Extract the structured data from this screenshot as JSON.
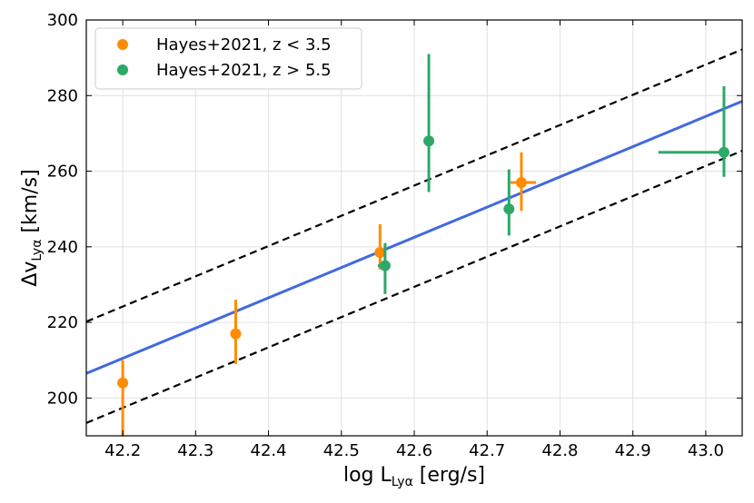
{
  "chart_data": {
    "type": "scatter",
    "title": "",
    "xlabel": {
      "main": "log L",
      "sub": "Lyα",
      "unit": " [erg/s]"
    },
    "ylabel": {
      "main": "Δv",
      "sub": "Lyα",
      "unit": " [km/s]"
    },
    "xlim": [
      42.15,
      43.05
    ],
    "ylim": [
      190,
      300
    ],
    "xticks": [
      "42.2",
      "42.3",
      "42.4",
      "42.5",
      "42.6",
      "42.7",
      "42.8",
      "42.9",
      "43.0"
    ],
    "yticks": [
      "200",
      "220",
      "240",
      "260",
      "280",
      "300"
    ],
    "grid": true,
    "legend_position": "top-left",
    "series": [
      {
        "name": "Hayes+2021, z < 3.5",
        "color": "#ff8c00",
        "points": [
          {
            "x": 42.2,
            "y": 204,
            "yerr": [
              14,
              6
            ],
            "xerr": [
              0,
              0
            ]
          },
          {
            "x": 42.355,
            "y": 217,
            "yerr": [
              8,
              9
            ],
            "xerr": [
              0,
              0
            ]
          },
          {
            "x": 42.553,
            "y": 238.5,
            "yerr": [
              4.5,
              7.5
            ],
            "xerr": [
              0,
              0
            ]
          },
          {
            "x": 42.747,
            "y": 257,
            "yerr": [
              7.5,
              8
            ],
            "xerr": [
              0.015,
              0.02
            ]
          }
        ]
      },
      {
        "name": "Hayes+2021, z > 5.5",
        "color": "#2ca868",
        "points": [
          {
            "x": 42.56,
            "y": 235,
            "yerr": [
              7.5,
              6
            ],
            "xerr": [
              0.01,
              0
            ]
          },
          {
            "x": 42.62,
            "y": 268,
            "yerr": [
              13.5,
              23
            ],
            "xerr": [
              0,
              0
            ]
          },
          {
            "x": 42.73,
            "y": 250,
            "yerr": [
              7,
              10.5
            ],
            "xerr": [
              0,
              0
            ]
          },
          {
            "x": 43.025,
            "y": 265,
            "yerr": [
              6.5,
              17.5
            ],
            "xerr": [
              0.09,
              0
            ]
          }
        ]
      }
    ],
    "fit_line": {
      "color": "#4169e1",
      "points": [
        [
          42.15,
          206.5
        ],
        [
          43.05,
          278.5
        ]
      ]
    },
    "bounds": [
      {
        "color": "#000000",
        "points": [
          [
            42.15,
            220.2
          ],
          [
            43.05,
            292.2
          ]
        ]
      },
      {
        "color": "#000000",
        "points": [
          [
            42.15,
            193.4
          ],
          [
            43.05,
            265.4
          ]
        ]
      }
    ]
  }
}
